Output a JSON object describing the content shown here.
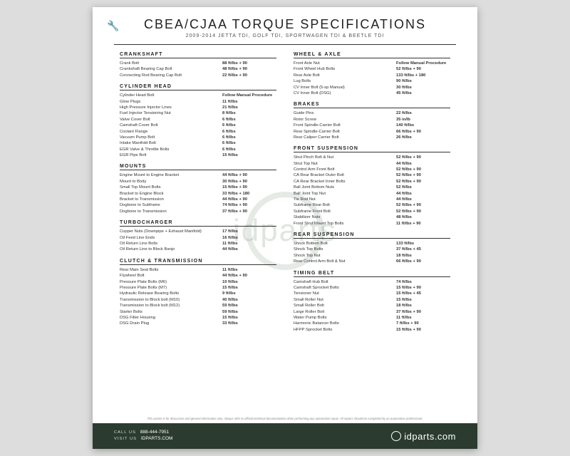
{
  "header": {
    "title": "CBEA/CJAA TORQUE SPECIFICATIONS",
    "subtitle": "2009-2014 JETTA TDI, GOLF TDI, SPORTWAGEN TDI & BEETLE TDI"
  },
  "left_sections": [
    {
      "name": "CRANKSHAFT",
      "rows": [
        {
          "label": "Crank Bolt",
          "val": "88 ft/lbs + 90"
        },
        {
          "label": "Crankshaft Bearing Cap Bolt",
          "val": "48 ft/lbs + 90"
        },
        {
          "label": "Connecting Rod Bearing Cap Bolt",
          "val": "22 ft/lbs + 90"
        }
      ]
    },
    {
      "name": "CYLINDER HEAD",
      "rows": [
        {
          "label": "Cylinder Head Bolt",
          "val": "Follow Manual Procedure"
        },
        {
          "label": "Glow Plugs",
          "val": "11 ft/lbs"
        },
        {
          "label": "High Pressure Injector Lines",
          "val": "21 ft/lbs"
        },
        {
          "label": "Fuel Injector Tensioning Nut",
          "val": "8 ft/lbs"
        },
        {
          "label": "Valve Cover Bolt",
          "val": "6 ft/lbs"
        },
        {
          "label": "Camshaft Cover Bolt",
          "val": "6 ft/lbs"
        },
        {
          "label": "Coolant Flange",
          "val": "6 ft/lbs"
        },
        {
          "label": "Vacuum Pump Bolt",
          "val": "6 ft/lbs"
        },
        {
          "label": "Intake Manifold Bolt",
          "val": "6 ft/lbs"
        },
        {
          "label": "EGR Valve & Throttle Bolts",
          "val": "6 ft/lbs"
        },
        {
          "label": "EGR Pipe Bolt",
          "val": "15 ft/lbs"
        }
      ]
    },
    {
      "name": "MOUNTS",
      "rows": [
        {
          "label": "Engine Mount to Engine Bracket",
          "val": "44 ft/lbs + 90"
        },
        {
          "label": "Mount to Body",
          "val": "30 ft/lbs + 90"
        },
        {
          "label": "Small Top Mount Bolts",
          "val": "15 ft/lbs + 90"
        },
        {
          "label": "Bracket to Engine Block",
          "val": "33 ft/lbs + 180"
        },
        {
          "label": "Bracket to Transmission",
          "val": "44 ft/lbs + 90"
        },
        {
          "label": "Dogbone to Subframe",
          "val": "74 ft/lbs + 90"
        },
        {
          "label": "Dogbone to Transmission",
          "val": "37 ft/lbs + 90"
        }
      ]
    },
    {
      "name": "TURBOCHARGER",
      "rows": [
        {
          "label": "Copper Nuts (Downpipe + Exhaust Manifold)",
          "val": "17 ft/lbs"
        },
        {
          "label": "Oil Feed Line Ends",
          "val": "16 ft/lbs"
        },
        {
          "label": "Oil Return Line Bolts",
          "val": "11 ft/lbs"
        },
        {
          "label": "Oil Return Line to Block Banjo",
          "val": "44 ft/lbs"
        }
      ]
    },
    {
      "name": "CLUTCH & TRANSMISSION",
      "rows": [
        {
          "label": "Rear Main Seal Bolts",
          "val": "11 ft/lbs"
        },
        {
          "label": "Flywheel Bolt",
          "val": "44 ft/lbs + 90"
        },
        {
          "label": "Pressure Plate Bolts (M6)",
          "val": "10 ft/lbs"
        },
        {
          "label": "Pressure Plate Bolts (M7)",
          "val": "15 ft/lbs"
        },
        {
          "label": "Hydraulic Release Bearing Bolts",
          "val": "9 ft/lbs"
        },
        {
          "label": "Transmission to Block bolt (M10)",
          "val": "40 ft/lbs"
        },
        {
          "label": "Transmission to Block bolt (M12)",
          "val": "59 ft/lbs"
        },
        {
          "label": "Starter Bolts",
          "val": "59 ft/lbs"
        },
        {
          "label": "DSG Filter Housing",
          "val": "15 ft/lbs"
        },
        {
          "label": "DSG Drain Plug",
          "val": "33 ft/lbs"
        }
      ]
    }
  ],
  "right_sections": [
    {
      "name": "WHEEL & AXLE",
      "rows": [
        {
          "label": "Front Axle Nut",
          "val": "Follow Manual Procedure"
        },
        {
          "label": "Front Wheel Hub Bolts",
          "val": "52 ft/lbs + 90"
        },
        {
          "label": "Rear Axle Bolt",
          "val": "133 ft/lbs + 180"
        },
        {
          "label": "Lug Bolts",
          "val": "90 ft/lbs"
        },
        {
          "label": "CV Inner Bolt (5-sp Manual)",
          "val": "30 ft/lbs"
        },
        {
          "label": "CV Inner Bolt (DSG)",
          "val": "45 ft/lbs"
        }
      ]
    },
    {
      "name": "BRAKES",
      "rows": [
        {
          "label": "Guide Pins",
          "val": "22 ft/lbs"
        },
        {
          "label": "Rotor Screw",
          "val": "35 in/lb"
        },
        {
          "label": "Front Spindle-Carrier Bolt",
          "val": "140 ft/lbs"
        },
        {
          "label": "Rear Spindle-Carrier Bolt",
          "val": "66 ft/lbs + 90"
        },
        {
          "label": "Rear Caliper Carrier Bolt",
          "val": "26 ft/lbs"
        }
      ]
    },
    {
      "name": "FRONT SUSPENSION",
      "rows": [
        {
          "label": "Strut Pinch Bolt & Nut",
          "val": "52 ft/lbs + 90"
        },
        {
          "label": "Strut Top Nut",
          "val": "44 ft/lbs"
        },
        {
          "label": "Control Arm Front Bolt",
          "val": "52 ft/lbs + 90"
        },
        {
          "label": "CA Rear Bracket Outer Bolt",
          "val": "52 ft/lbs + 90"
        },
        {
          "label": "CA Rear Bracket Inner Bolts",
          "val": "52 ft/lbs + 90"
        },
        {
          "label": "Ball Joint Bottom Nuts",
          "val": "52 ft/lbs"
        },
        {
          "label": "Ball Joint Top Nut",
          "val": "44 ft/lbs"
        },
        {
          "label": "Tie Rod Nut",
          "val": "44 ft/lbs"
        },
        {
          "label": "Subframe Rear Bolt",
          "val": "52 ft/lbs + 90"
        },
        {
          "label": "Subframe Front Bolt",
          "val": "52 ft/lbs + 90"
        },
        {
          "label": "Stabilizer Nuts",
          "val": "48 ft/lbs"
        },
        {
          "label": "Front Strut Mount Top Bolts",
          "val": "11 ft/lbs + 90"
        }
      ]
    },
    {
      "name": "REAR SUSPENSION",
      "rows": [
        {
          "label": "Shock Bottom Bolt",
          "val": "133 ft/lbs"
        },
        {
          "label": "Shock Top Bolts",
          "val": "37 ft/lbs + 45"
        },
        {
          "label": "Shock Top Nut",
          "val": "18 ft/lbs"
        },
        {
          "label": "Rear Control Arm Bolt & Nut",
          "val": "66 ft/lbs + 90"
        }
      ]
    },
    {
      "name": "TIMING BELT",
      "rows": [
        {
          "label": "Camshaft Hub Bolt",
          "val": "74 ft/lbs"
        },
        {
          "label": "Camshaft Sprocket Bolts",
          "val": "15 ft/lbs + 90"
        },
        {
          "label": "Tensioner Nut",
          "val": "15 ft/lbs + 45"
        },
        {
          "label": "Small Roller Nut",
          "val": "15 ft/lbs"
        },
        {
          "label": "Small Roller Bolt",
          "val": "18 ft/lbs"
        },
        {
          "label": "Large Roller Bolt",
          "val": "37 ft/lbs + 90"
        },
        {
          "label": "Water Pump Bolts",
          "val": "11 ft/lbs"
        },
        {
          "label": "Harmonic Balancer Bolts",
          "val": "7 ft/lbs + 90"
        },
        {
          "label": "HFPP Sprocket Bolts",
          "val": "15 ft/lbs + 90"
        }
      ]
    }
  ],
  "disclaimer": "This poster is for discussion and general information only. Always refer to official technical documentation when performing any automotive repair. All repairs should be completed by an automotive professional.",
  "footer": {
    "call_label": "CALL US",
    "phone": "888-444-7951",
    "visit_label": "VISIT US",
    "site": "IDPARTS.COM",
    "brand": "idparts.com"
  },
  "watermark": "idparts"
}
